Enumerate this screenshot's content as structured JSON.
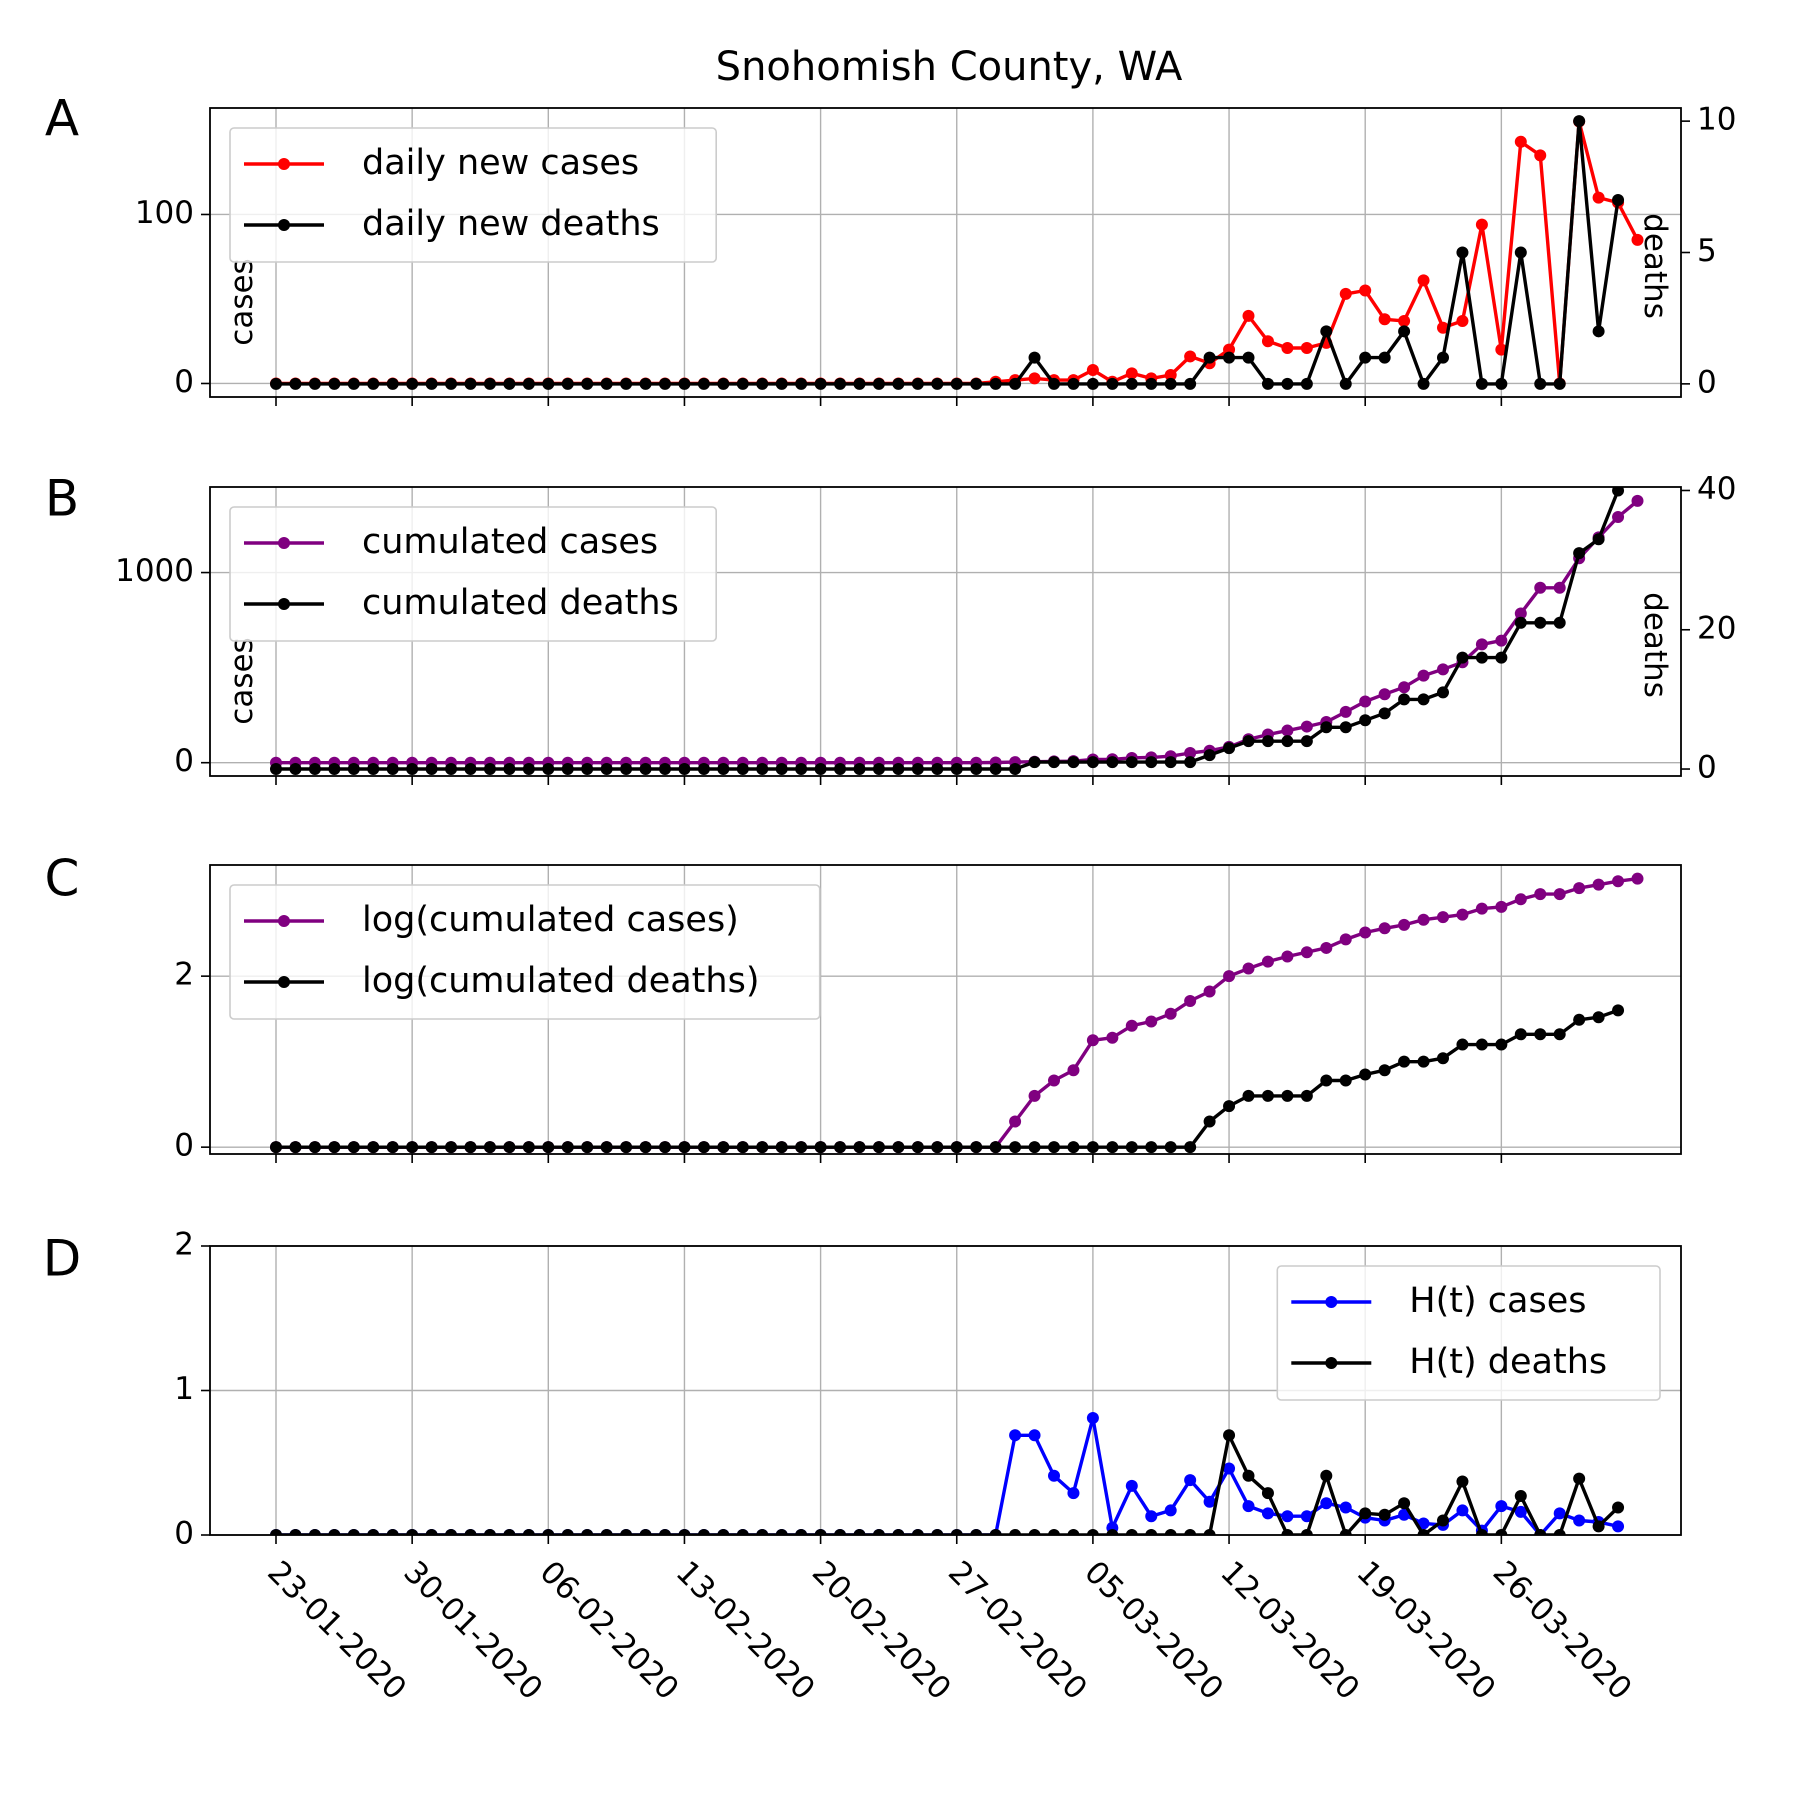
{
  "figure_title": "Snohomish County, WA",
  "x_tick_labels": [
    "23-01-2020",
    "30-01-2020",
    "06-02-2020",
    "13-02-2020",
    "20-02-2020",
    "27-02-2020",
    "05-03-2020",
    "12-03-2020",
    "19-03-2020",
    "26-03-2020"
  ],
  "chart_data": [
    {
      "panel": "A",
      "type": "line",
      "x_start": "23-01-2020",
      "x_end": "01-04-2020",
      "ylabel": "cases",
      "ylabel_right": "deaths",
      "ylim": [
        -8,
        163
      ],
      "ylim_right": [
        -0.5,
        10.5
      ],
      "yticks": [
        0,
        100
      ],
      "yticks_right": [
        0,
        5,
        10
      ],
      "grid": true,
      "legend": "top-left",
      "series": [
        {
          "name": "daily new cases",
          "color": "#ff0000",
          "axis": "left",
          "values": [
            0,
            0,
            0,
            0,
            0,
            0,
            0,
            0,
            0,
            0,
            0,
            0,
            0,
            0,
            0,
            0,
            0,
            0,
            0,
            0,
            0,
            0,
            0,
            0,
            0,
            0,
            0,
            0,
            0,
            0,
            0,
            0,
            0,
            0,
            0,
            0,
            0,
            1,
            2,
            3,
            2,
            2,
            8,
            1,
            6,
            3,
            5,
            16,
            12,
            20,
            40,
            25,
            21,
            21,
            24,
            53,
            55,
            38,
            37,
            61,
            33,
            37,
            94,
            20,
            143,
            135,
            0,
            155,
            110,
            107,
            85
          ]
        },
        {
          "name": "daily new deaths",
          "color": "#000000",
          "axis": "right",
          "values": [
            0,
            0,
            0,
            0,
            0,
            0,
            0,
            0,
            0,
            0,
            0,
            0,
            0,
            0,
            0,
            0,
            0,
            0,
            0,
            0,
            0,
            0,
            0,
            0,
            0,
            0,
            0,
            0,
            0,
            0,
            0,
            0,
            0,
            0,
            0,
            0,
            0,
            0,
            0,
            1,
            0,
            0,
            0,
            0,
            0,
            0,
            0,
            0,
            1,
            1,
            1,
            0,
            0,
            0,
            2,
            0,
            1,
            1,
            2,
            0,
            1,
            5,
            0,
            0,
            5,
            0,
            0,
            10,
            2,
            7
          ]
        }
      ]
    },
    {
      "panel": "B",
      "type": "line",
      "x_start": "23-01-2020",
      "x_end": "01-04-2020",
      "ylabel": "cases",
      "ylabel_right": "deaths",
      "ylim": [
        -70,
        1450
      ],
      "ylim_right": [
        -1.0,
        40.5
      ],
      "yticks": [
        0,
        1000
      ],
      "yticks_right": [
        0,
        20,
        40
      ],
      "grid": true,
      "legend": "top-left",
      "series": [
        {
          "name": "cumulated cases",
          "color": "#800080",
          "axis": "left",
          "values": [
            0,
            0,
            0,
            0,
            0,
            0,
            0,
            0,
            0,
            0,
            0,
            0,
            0,
            0,
            0,
            0,
            0,
            0,
            0,
            0,
            0,
            0,
            0,
            0,
            0,
            0,
            0,
            0,
            0,
            0,
            0,
            0,
            0,
            0,
            0,
            0,
            0,
            1,
            3,
            5,
            7,
            8,
            17,
            18,
            25,
            28,
            34,
            51,
            63,
            83,
            123,
            148,
            169,
            190,
            214,
            267,
            322,
            360,
            397,
            458,
            491,
            528,
            622,
            642,
            785,
            920,
            920,
            1075,
            1185,
            1292,
            1377
          ]
        },
        {
          "name": "cumulated deaths",
          "color": "#000000",
          "axis": "right",
          "values": [
            0,
            0,
            0,
            0,
            0,
            0,
            0,
            0,
            0,
            0,
            0,
            0,
            0,
            0,
            0,
            0,
            0,
            0,
            0,
            0,
            0,
            0,
            0,
            0,
            0,
            0,
            0,
            0,
            0,
            0,
            0,
            0,
            0,
            0,
            0,
            0,
            0,
            0,
            0,
            1,
            1,
            1,
            1,
            1,
            1,
            1,
            1,
            1,
            2,
            3,
            4,
            4,
            4,
            4,
            6,
            6,
            7,
            8,
            10,
            10,
            11,
            16,
            16,
            16,
            21,
            21,
            21,
            31,
            33,
            40
          ]
        }
      ]
    },
    {
      "panel": "C",
      "type": "line",
      "x_start": "23-01-2020",
      "x_end": "01-04-2020",
      "ylim": [
        -0.08,
        3.3
      ],
      "yticks": [
        0,
        2
      ],
      "grid": true,
      "legend": "top-left",
      "series": [
        {
          "name": "log(cumulated cases)",
          "color": "#800080",
          "values": [
            0,
            0,
            0,
            0,
            0,
            0,
            0,
            0,
            0,
            0,
            0,
            0,
            0,
            0,
            0,
            0,
            0,
            0,
            0,
            0,
            0,
            0,
            0,
            0,
            0,
            0,
            0,
            0,
            0,
            0,
            0,
            0,
            0,
            0,
            0,
            0,
            0,
            0,
            0.3,
            0.6,
            0.78,
            0.9,
            1.25,
            1.28,
            1.42,
            1.47,
            1.56,
            1.71,
            1.82,
            2.0,
            2.09,
            2.17,
            2.23,
            2.28,
            2.33,
            2.43,
            2.51,
            2.56,
            2.6,
            2.66,
            2.69,
            2.72,
            2.79,
            2.81,
            2.9,
            2.96,
            2.96,
            3.03,
            3.07,
            3.11,
            3.14
          ]
        },
        {
          "name": "log(cumulated deaths)",
          "color": "#000000",
          "values": [
            0,
            0,
            0,
            0,
            0,
            0,
            0,
            0,
            0,
            0,
            0,
            0,
            0,
            0,
            0,
            0,
            0,
            0,
            0,
            0,
            0,
            0,
            0,
            0,
            0,
            0,
            0,
            0,
            0,
            0,
            0,
            0,
            0,
            0,
            0,
            0,
            0,
            0,
            0,
            0,
            0,
            0,
            0,
            0,
            0,
            0,
            0,
            0,
            0.3,
            0.48,
            0.6,
            0.6,
            0.6,
            0.6,
            0.78,
            0.78,
            0.85,
            0.9,
            1.0,
            1.0,
            1.04,
            1.2,
            1.2,
            1.2,
            1.32,
            1.32,
            1.32,
            1.49,
            1.52,
            1.6
          ]
        }
      ]
    },
    {
      "panel": "D",
      "type": "line",
      "x_start": "23-01-2020",
      "x_end": "01-04-2020",
      "ylim": [
        0,
        2
      ],
      "yticks": [
        0,
        1,
        2
      ],
      "grid": true,
      "legend": "top-right",
      "series": [
        {
          "name": "H(t) cases",
          "color": "#0000ff",
          "values": [
            0,
            0,
            0,
            0,
            0,
            0,
            0,
            0,
            0,
            0,
            0,
            0,
            0,
            0,
            0,
            0,
            0,
            0,
            0,
            0,
            0,
            0,
            0,
            0,
            0,
            0,
            0,
            0,
            0,
            0,
            0,
            0,
            0,
            0,
            0,
            0,
            0,
            0,
            0.69,
            0.69,
            0.41,
            0.29,
            0.81,
            0.05,
            0.34,
            0.13,
            0.17,
            0.38,
            0.23,
            0.46,
            0.2,
            0.15,
            0.13,
            0.13,
            0.22,
            0.19,
            0.12,
            0.1,
            0.14,
            0.08,
            0.07,
            0.17,
            0.03,
            0.2,
            0.16,
            0,
            0.15,
            0.1,
            0.09,
            0.06
          ]
        },
        {
          "name": "H(t) deaths",
          "color": "#000000",
          "values": [
            0,
            0,
            0,
            0,
            0,
            0,
            0,
            0,
            0,
            0,
            0,
            0,
            0,
            0,
            0,
            0,
            0,
            0,
            0,
            0,
            0,
            0,
            0,
            0,
            0,
            0,
            0,
            0,
            0,
            0,
            0,
            0,
            0,
            0,
            0,
            0,
            0,
            0,
            0,
            0,
            0,
            0,
            0,
            0,
            0,
            0,
            0,
            0,
            0,
            0.69,
            0.41,
            0.29,
            0,
            0,
            0.41,
            0,
            0.15,
            0.14,
            0.22,
            0,
            0.1,
            0.37,
            0,
            0,
            0.27,
            0,
            0,
            0.39,
            0.06,
            0.19
          ]
        }
      ]
    }
  ]
}
